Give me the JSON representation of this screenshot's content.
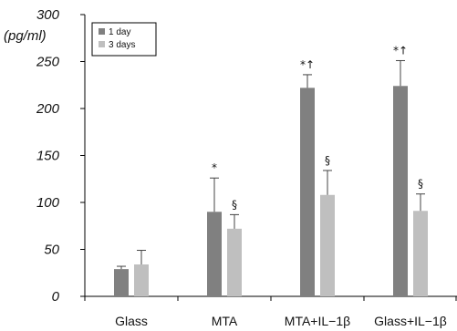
{
  "chart_data": {
    "type": "bar",
    "ylabel": "(pg/ml)",
    "ylim": [
      0,
      300
    ],
    "yticks": [
      0,
      50,
      100,
      150,
      200,
      250,
      300
    ],
    "categories": [
      "Glass",
      "MTA",
      "MTA+IL−1β",
      "Glass+IL−1β"
    ],
    "series": [
      {
        "name": "1 day",
        "color": "#808080",
        "values": [
          29,
          90,
          222,
          224
        ],
        "errors": [
          3,
          36,
          14,
          27
        ]
      },
      {
        "name": "3 days",
        "color": "#bfbfbf",
        "values": [
          34,
          72,
          108,
          91
        ],
        "errors": [
          15,
          15,
          26,
          18
        ]
      }
    ],
    "annotations": [
      [
        "",
        ""
      ],
      [
        "*",
        "§"
      ],
      [
        "*↑",
        "§"
      ],
      [
        "*↑",
        "§"
      ]
    ],
    "legend_position": "top-left",
    "grid": false
  }
}
